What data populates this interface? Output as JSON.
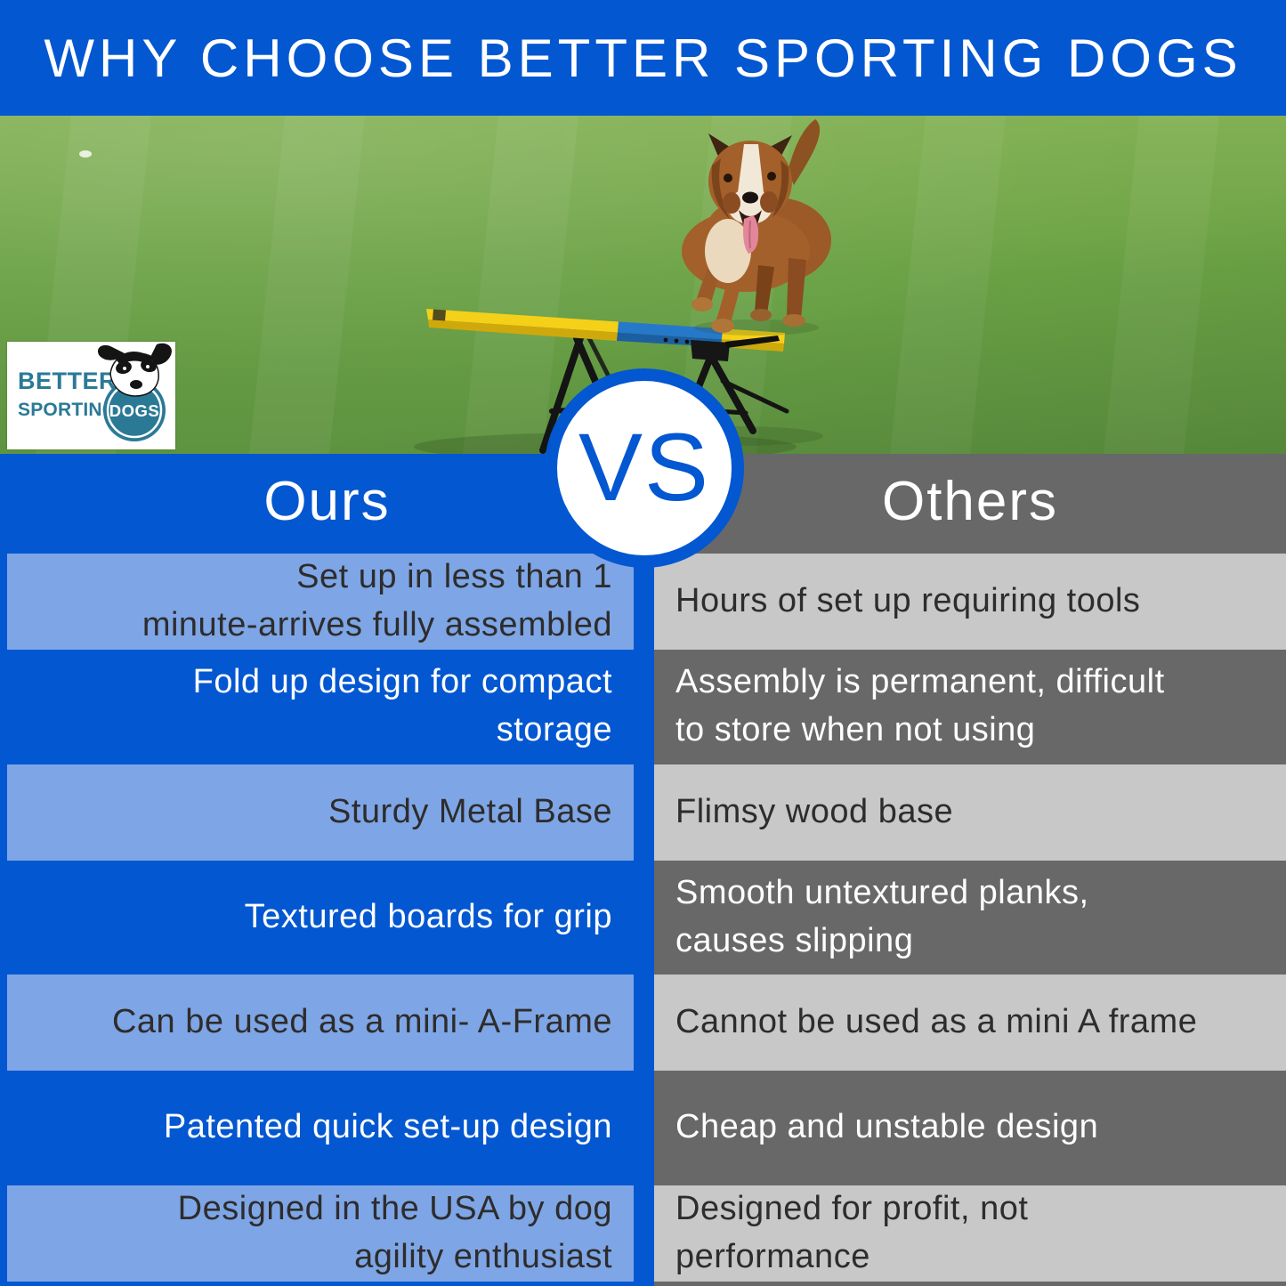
{
  "header": {
    "title": "WHY CHOOSE BETTER SPORTING DOGS"
  },
  "logo": {
    "line1": "BETTER",
    "line2": "SPORTING",
    "circle_text": "DOGS"
  },
  "vs_badge": {
    "label": "VS"
  },
  "comparison": {
    "ours_header": "Ours",
    "others_header": "Others",
    "rows": [
      {
        "variant": "light",
        "ours": "Set up in less than 1\nminute-arrives fully assembled",
        "others": "Hours of set up requiring tools"
      },
      {
        "variant": "dark",
        "ours": "Fold up design for compact\nstorage",
        "others": "Assembly is permanent, difficult\nto store when not using"
      },
      {
        "variant": "light",
        "ours": "Sturdy Metal Base",
        "others": "Flimsy wood base"
      },
      {
        "variant": "dark",
        "ours": "Textured boards for grip",
        "others": "Smooth untextured planks,\ncauses slipping"
      },
      {
        "variant": "light",
        "ours": "Can be used as a mini- A-Frame",
        "others": "Cannot be used as a mini A frame"
      },
      {
        "variant": "dark",
        "ours": "Patented quick set-up design",
        "others": "Cheap and unstable design"
      },
      {
        "variant": "light",
        "ours": "Designed in the USA by dog\nagility enthusiast",
        "others": "Designed for profit, not\nperformance"
      }
    ]
  },
  "colors": {
    "primary_blue": "#0357d1",
    "light_blue": "#7ea6e6",
    "dark_gray": "#686868",
    "light_gray": "#c8c8c8",
    "logo_teal": "#2a7a96",
    "text_dark": "#2e2c2c",
    "text_light": "#ffffff"
  }
}
